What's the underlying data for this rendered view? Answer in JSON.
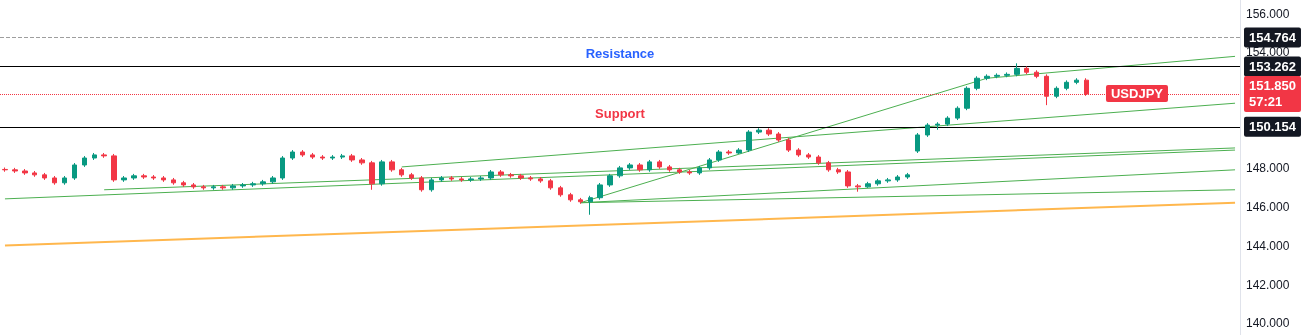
{
  "chart_data": {
    "type": "candlestick",
    "categories": [
      null,
      null,
      null,
      null,
      null,
      null,
      null,
      null,
      null,
      null,
      null,
      null,
      null,
      null,
      null,
      null,
      null,
      null,
      null,
      null,
      null,
      null,
      null,
      null,
      null,
      null,
      null,
      null,
      null,
      null,
      null,
      null,
      null,
      null,
      null,
      null,
      null,
      null,
      null,
      null,
      null,
      null,
      null,
      null,
      null,
      null,
      null,
      null,
      null,
      null,
      null,
      null,
      null,
      null,
      null,
      null,
      null,
      null,
      null,
      null,
      null,
      null,
      null,
      null,
      null,
      null,
      null,
      null,
      null,
      null,
      null,
      null,
      null,
      null,
      null,
      null,
      null,
      null,
      null,
      null,
      null,
      null,
      null,
      null,
      null,
      null,
      null,
      null,
      null,
      null,
      null,
      null,
      null,
      null,
      null,
      null,
      null,
      null,
      null,
      null,
      null,
      null,
      null,
      null,
      null,
      null,
      null,
      null,
      null,
      null,
      null,
      null,
      null,
      null,
      null,
      null,
      null,
      null,
      null,
      null,
      null,
      null,
      null,
      null,
      null
    ],
    "ohlc": [
      [
        147.95,
        148.05,
        147.83,
        147.93
      ],
      [
        147.93,
        148.03,
        147.77,
        147.87
      ],
      [
        147.87,
        147.97,
        147.67,
        147.77
      ],
      [
        147.77,
        147.87,
        147.57,
        147.67
      ],
      [
        147.67,
        147.77,
        147.41,
        147.51
      ],
      [
        147.51,
        147.61,
        147.16,
        147.26
      ],
      [
        147.26,
        147.61,
        147.16,
        147.51
      ],
      [
        147.51,
        148.28,
        147.41,
        148.18
      ],
      [
        148.18,
        148.64,
        148.08,
        148.54
      ],
      [
        148.54,
        148.8,
        148.44,
        148.7
      ],
      [
        148.7,
        148.8,
        148.55,
        148.65
      ],
      [
        148.65,
        148.75,
        147.31,
        147.41
      ],
      [
        147.41,
        147.61,
        147.31,
        147.51
      ],
      [
        147.51,
        147.72,
        147.41,
        147.62
      ],
      [
        147.62,
        147.72,
        147.46,
        147.56
      ],
      [
        147.56,
        147.66,
        147.41,
        147.51
      ],
      [
        147.51,
        147.61,
        147.31,
        147.41
      ],
      [
        147.41,
        147.51,
        147.16,
        147.26
      ],
      [
        147.26,
        147.36,
        147.05,
        147.15
      ],
      [
        147.15,
        147.25,
        146.95,
        147.05
      ],
      [
        147.05,
        147.15,
        146.9,
        147.0
      ],
      [
        147.0,
        147.15,
        146.9,
        147.05
      ],
      [
        147.05,
        147.15,
        146.9,
        147.0
      ],
      [
        147.0,
        147.2,
        146.9,
        147.1
      ],
      [
        147.1,
        147.25,
        147.0,
        147.15
      ],
      [
        147.15,
        147.31,
        147.05,
        147.21
      ],
      [
        147.21,
        147.41,
        147.11,
        147.31
      ],
      [
        147.31,
        147.61,
        147.21,
        147.51
      ],
      [
        147.51,
        148.64,
        147.41,
        148.54
      ],
      [
        148.54,
        148.95,
        148.44,
        148.85
      ],
      [
        148.85,
        148.95,
        148.6,
        148.7
      ],
      [
        148.7,
        148.8,
        148.49,
        148.59
      ],
      [
        148.59,
        148.69,
        148.44,
        148.54
      ],
      [
        148.54,
        148.69,
        148.44,
        148.59
      ],
      [
        148.59,
        148.75,
        148.49,
        148.65
      ],
      [
        148.65,
        148.75,
        148.34,
        148.44
      ],
      [
        148.44,
        148.54,
        148.19,
        148.29
      ],
      [
        148.29,
        148.39,
        146.9,
        147.21
      ],
      [
        147.21,
        148.44,
        147.11,
        148.34
      ],
      [
        148.34,
        148.44,
        147.83,
        147.93
      ],
      [
        147.93,
        148.03,
        147.57,
        147.67
      ],
      [
        147.67,
        147.77,
        147.41,
        147.51
      ],
      [
        147.51,
        147.61,
        146.8,
        146.9
      ],
      [
        146.9,
        147.51,
        146.8,
        147.41
      ],
      [
        147.41,
        147.61,
        147.31,
        147.51
      ],
      [
        147.51,
        147.61,
        147.36,
        147.46
      ],
      [
        147.46,
        147.56,
        147.31,
        147.41
      ],
      [
        147.41,
        147.56,
        147.31,
        147.46
      ],
      [
        147.46,
        147.61,
        147.36,
        147.51
      ],
      [
        147.51,
        147.92,
        147.41,
        147.82
      ],
      [
        147.82,
        147.92,
        147.57,
        147.67
      ],
      [
        147.67,
        147.77,
        147.52,
        147.62
      ],
      [
        147.62,
        147.72,
        147.41,
        147.51
      ],
      [
        147.51,
        147.61,
        147.36,
        147.46
      ],
      [
        147.46,
        147.56,
        147.26,
        147.36
      ],
      [
        147.36,
        147.46,
        146.9,
        147.0
      ],
      [
        147.0,
        147.1,
        146.54,
        146.64
      ],
      [
        146.64,
        146.74,
        146.28,
        146.38
      ],
      [
        146.38,
        146.48,
        146.18,
        146.28
      ],
      [
        146.28,
        146.59,
        145.61,
        146.49
      ],
      [
        146.49,
        147.25,
        146.39,
        147.15
      ],
      [
        147.15,
        147.72,
        147.05,
        147.62
      ],
      [
        147.62,
        148.13,
        147.52,
        148.03
      ],
      [
        148.03,
        148.28,
        147.93,
        148.18
      ],
      [
        148.18,
        148.28,
        147.83,
        147.93
      ],
      [
        147.93,
        148.44,
        147.83,
        148.34
      ],
      [
        148.34,
        148.44,
        147.98,
        148.08
      ],
      [
        148.08,
        148.18,
        147.83,
        147.93
      ],
      [
        147.93,
        148.03,
        147.72,
        147.82
      ],
      [
        147.82,
        147.92,
        147.67,
        147.77
      ],
      [
        147.77,
        148.13,
        147.67,
        148.03
      ],
      [
        148.03,
        148.54,
        147.93,
        148.44
      ],
      [
        148.44,
        148.95,
        148.34,
        148.85
      ],
      [
        148.85,
        148.95,
        148.7,
        148.8
      ],
      [
        148.8,
        149.05,
        148.75,
        148.95
      ],
      [
        148.95,
        149.98,
        148.85,
        149.88
      ],
      [
        149.88,
        150.08,
        149.78,
        149.98
      ],
      [
        149.98,
        150.08,
        149.68,
        149.78
      ],
      [
        149.78,
        149.88,
        149.37,
        149.47
      ],
      [
        149.47,
        149.57,
        148.85,
        148.95
      ],
      [
        148.95,
        149.05,
        148.6,
        148.7
      ],
      [
        148.7,
        148.8,
        148.49,
        148.59
      ],
      [
        148.59,
        148.69,
        148.19,
        148.29
      ],
      [
        148.29,
        148.39,
        147.83,
        147.93
      ],
      [
        147.93,
        148.03,
        147.72,
        147.82
      ],
      [
        147.82,
        147.92,
        147.0,
        147.1
      ],
      [
        147.1,
        147.2,
        146.8,
        147.05
      ],
      [
        147.05,
        147.31,
        147.0,
        147.21
      ],
      [
        147.21,
        147.46,
        147.11,
        147.36
      ],
      [
        147.36,
        147.51,
        147.26,
        147.41
      ],
      [
        147.41,
        147.66,
        147.31,
        147.56
      ],
      [
        147.56,
        147.77,
        147.46,
        147.67
      ],
      [
        148.9,
        149.83,
        148.8,
        149.73
      ],
      [
        149.73,
        150.34,
        149.63,
        150.24
      ],
      [
        150.24,
        150.39,
        150.0,
        150.29
      ],
      [
        150.29,
        150.7,
        150.19,
        150.6
      ],
      [
        150.6,
        151.21,
        150.5,
        151.11
      ],
      [
        151.11,
        152.24,
        151.01,
        152.14
      ],
      [
        152.14,
        152.76,
        152.04,
        152.66
      ],
      [
        152.66,
        152.86,
        152.56,
        152.76
      ],
      [
        152.76,
        152.91,
        152.66,
        152.81
      ],
      [
        152.81,
        152.96,
        152.71,
        152.86
      ],
      [
        152.86,
        153.43,
        152.76,
        153.17
      ],
      [
        153.17,
        153.27,
        152.87,
        152.97
      ],
      [
        152.97,
        153.07,
        152.66,
        152.76
      ],
      [
        152.76,
        152.86,
        151.27,
        151.73
      ],
      [
        151.73,
        152.24,
        151.63,
        152.14
      ],
      [
        152.14,
        152.55,
        152.04,
        152.45
      ],
      [
        152.45,
        152.66,
        152.35,
        152.56
      ],
      [
        152.56,
        152.66,
        151.75,
        151.85
      ],
      null,
      null,
      null,
      null,
      null,
      null,
      null,
      null,
      null,
      null,
      null,
      null,
      null,
      null,
      null
    ],
    "series": [
      {
        "type": "line",
        "color": "#4caf50",
        "values": [
          146.43,
          null,
          null,
          null,
          null,
          null,
          null,
          null,
          null,
          null,
          null,
          null,
          null,
          null,
          null,
          null,
          null,
          null,
          null,
          null,
          null,
          null,
          null,
          null,
          null,
          null,
          null,
          null,
          null,
          null,
          null,
          null,
          null,
          null,
          null,
          null,
          null,
          null,
          null,
          null,
          null,
          null,
          null,
          null,
          null,
          null,
          null,
          null,
          null,
          null,
          null,
          null,
          null,
          null,
          null,
          null,
          null,
          null,
          null,
          null,
          null,
          null,
          null,
          null,
          null,
          null,
          null,
          null,
          null,
          null,
          null,
          null,
          null,
          null,
          null,
          null,
          null,
          null,
          null,
          null,
          null,
          null,
          null,
          null,
          null,
          null,
          null,
          null,
          null,
          null,
          null,
          null,
          null,
          null,
          null,
          null,
          null,
          null,
          null,
          null,
          null,
          null,
          null,
          null,
          null,
          null,
          null,
          null,
          null,
          null,
          null,
          null,
          null,
          null,
          null,
          null,
          null,
          null,
          null,
          null,
          null,
          null,
          null,
          null,
          148.95
        ]
      },
      {
        "type": "line",
        "color": "#4caf50",
        "values": [
          null,
          null,
          null,
          null,
          null,
          null,
          null,
          null,
          null,
          null,
          146.9,
          null,
          null,
          null,
          null,
          null,
          null,
          null,
          null,
          null,
          null,
          null,
          null,
          null,
          null,
          null,
          null,
          null,
          null,
          null,
          null,
          null,
          null,
          null,
          null,
          null,
          null,
          null,
          null,
          null,
          null,
          null,
          null,
          null,
          null,
          null,
          null,
          null,
          null,
          null,
          null,
          null,
          null,
          null,
          null,
          null,
          null,
          null,
          null,
          null,
          null,
          null,
          null,
          null,
          null,
          null,
          null,
          null,
          null,
          null,
          null,
          null,
          null,
          null,
          null,
          null,
          null,
          null,
          null,
          null,
          null,
          null,
          null,
          null,
          null,
          null,
          null,
          null,
          null,
          null,
          null,
          null,
          null,
          null,
          null,
          null,
          null,
          null,
          null,
          null,
          null,
          null,
          null,
          null,
          null,
          null,
          null,
          null,
          null,
          null,
          null,
          null,
          null,
          null,
          null,
          null,
          null,
          null,
          null,
          null,
          null,
          null,
          null,
          null,
          149.06
        ]
      },
      {
        "type": "line",
        "color": "#4caf50",
        "values": [
          null,
          null,
          null,
          null,
          null,
          null,
          null,
          null,
          null,
          null,
          null,
          null,
          null,
          null,
          null,
          null,
          null,
          null,
          null,
          null,
          null,
          null,
          null,
          null,
          null,
          null,
          null,
          null,
          null,
          null,
          null,
          null,
          null,
          null,
          null,
          null,
          null,
          null,
          null,
          null,
          148.08,
          null,
          null,
          null,
          null,
          null,
          null,
          null,
          null,
          null,
          null,
          null,
          null,
          null,
          null,
          null,
          null,
          null,
          null,
          null,
          null,
          null,
          null,
          null,
          null,
          null,
          null,
          null,
          null,
          null,
          null,
          null,
          null,
          null,
          null,
          null,
          null,
          null,
          null,
          null,
          null,
          null,
          null,
          null,
          null,
          null,
          null,
          null,
          null,
          null,
          null,
          null,
          null,
          null,
          null,
          null,
          null,
          null,
          null,
          null,
          null,
          null,
          null,
          null,
          null,
          null,
          null,
          null,
          null,
          null,
          null,
          null,
          null,
          null,
          null,
          null,
          null,
          null,
          null,
          null,
          null,
          null,
          null,
          null,
          151.37
        ]
      },
      {
        "type": "line",
        "color": "#4caf50",
        "values": [
          null,
          null,
          null,
          null,
          null,
          null,
          null,
          null,
          null,
          null,
          null,
          null,
          null,
          null,
          null,
          null,
          null,
          null,
          null,
          null,
          null,
          null,
          null,
          null,
          null,
          null,
          null,
          null,
          null,
          null,
          null,
          null,
          null,
          null,
          null,
          null,
          null,
          null,
          null,
          null,
          null,
          null,
          null,
          null,
          null,
          null,
          null,
          null,
          null,
          null,
          null,
          null,
          null,
          null,
          null,
          null,
          null,
          null,
          146.23,
          null,
          null,
          null,
          null,
          null,
          null,
          null,
          null,
          null,
          null,
          null,
          null,
          null,
          null,
          null,
          null,
          null,
          null,
          null,
          null,
          null,
          null,
          null,
          null,
          null,
          null,
          null,
          null,
          null,
          null,
          null,
          null,
          null,
          null,
          null,
          null,
          null,
          null,
          null,
          null,
          null,
          null,
          null,
          null,
          null,
          null,
          null,
          null,
          null,
          null,
          null,
          null,
          null,
          null,
          null,
          null,
          null,
          null,
          null,
          null,
          null,
          null,
          null,
          null,
          null,
          147.93
        ]
      },
      {
        "type": "line",
        "color": "#4caf50",
        "values": [
          null,
          null,
          null,
          null,
          null,
          null,
          null,
          null,
          null,
          null,
          null,
          null,
          null,
          null,
          null,
          null,
          null,
          null,
          null,
          null,
          null,
          null,
          null,
          null,
          null,
          null,
          null,
          null,
          null,
          null,
          null,
          null,
          null,
          null,
          null,
          null,
          null,
          null,
          null,
          null,
          null,
          null,
          null,
          null,
          null,
          null,
          null,
          null,
          null,
          null,
          null,
          null,
          null,
          null,
          null,
          null,
          null,
          null,
          146.23,
          null,
          null,
          null,
          null,
          null,
          null,
          null,
          null,
          null,
          null,
          null,
          null,
          null,
          null,
          null,
          null,
          null,
          null,
          null,
          null,
          null,
          null,
          null,
          null,
          null,
          null,
          null,
          null,
          null,
          null,
          null,
          null,
          null,
          null,
          null,
          null,
          null,
          null,
          null,
          null,
          null,
          null,
          null,
          null,
          null,
          null,
          null,
          null,
          null,
          null,
          null,
          null,
          null,
          null,
          null,
          null,
          null,
          null,
          null,
          null,
          null,
          null,
          null,
          null,
          null,
          146.9
        ]
      },
      {
        "type": "line",
        "color": "#4caf50",
        "values": [
          null,
          null,
          null,
          null,
          null,
          null,
          null,
          null,
          null,
          null,
          null,
          null,
          null,
          null,
          null,
          null,
          null,
          null,
          null,
          null,
          null,
          null,
          null,
          null,
          null,
          null,
          null,
          null,
          null,
          null,
          null,
          null,
          null,
          null,
          null,
          null,
          null,
          null,
          null,
          null,
          null,
          null,
          null,
          null,
          null,
          null,
          null,
          null,
          null,
          null,
          null,
          null,
          null,
          null,
          null,
          null,
          null,
          null,
          146.23,
          null,
          null,
          null,
          null,
          null,
          null,
          null,
          null,
          null,
          null,
          null,
          null,
          null,
          null,
          null,
          null,
          null,
          null,
          null,
          null,
          null,
          null,
          null,
          null,
          null,
          null,
          null,
          null,
          null,
          null,
          null,
          null,
          null,
          null,
          null,
          null,
          null,
          null,
          null,
          null,
          152.66,
          null,
          null,
          null,
          null,
          null,
          null,
          null,
          null,
          null,
          null,
          null,
          null,
          null,
          null,
          null,
          null,
          null,
          null,
          null,
          null,
          null,
          null,
          null,
          null,
          153.79
        ]
      },
      {
        "type": "line",
        "color": "#ffb74d",
        "values": [
          144.02,
          null,
          null,
          null,
          null,
          null,
          null,
          null,
          null,
          null,
          null,
          null,
          null,
          null,
          null,
          null,
          null,
          null,
          null,
          null,
          null,
          null,
          null,
          null,
          null,
          null,
          null,
          null,
          null,
          null,
          null,
          null,
          null,
          null,
          null,
          null,
          null,
          null,
          null,
          null,
          null,
          null,
          null,
          null,
          null,
          null,
          null,
          null,
          null,
          null,
          null,
          null,
          null,
          null,
          null,
          null,
          null,
          null,
          null,
          null,
          null,
          null,
          null,
          null,
          null,
          null,
          null,
          null,
          null,
          null,
          null,
          null,
          null,
          null,
          null,
          null,
          null,
          null,
          null,
          null,
          null,
          null,
          null,
          null,
          null,
          null,
          null,
          null,
          null,
          null,
          null,
          null,
          null,
          null,
          null,
          null,
          null,
          null,
          null,
          null,
          null,
          null,
          null,
          null,
          null,
          null,
          null,
          null,
          null,
          null,
          null,
          null,
          null,
          null,
          null,
          null,
          null,
          null,
          null,
          null,
          null,
          null,
          null,
          null,
          146.23
        ]
      }
    ],
    "ylim": [
      139.4,
      156.7
    ],
    "yticks": [
      {
        "value": 140,
        "label": "140.000"
      },
      {
        "value": 142,
        "label": "142.000"
      },
      {
        "value": 144,
        "label": "144.000"
      },
      {
        "value": 146,
        "label": "146.000"
      },
      {
        "value": 148,
        "label": "148.000"
      },
      {
        "value": 154,
        "label": "154.000"
      },
      {
        "value": 156,
        "label": "156.000"
      }
    ],
    "tick_labels": "y",
    "ref_lines": [
      {
        "axis": "y",
        "value": 154.764,
        "label": "154.764",
        "color": "#9e9e9e",
        "line_style": "dashed"
      },
      {
        "axis": "y",
        "value": 153.262,
        "label": "153.262",
        "color": "#000000",
        "line_style": "solid"
      },
      {
        "axis": "y",
        "value": 151.85,
        "label": "151.850\n57:21",
        "color": "#f23645",
        "line_style": "dotted"
      },
      {
        "axis": "y",
        "value": 150.154,
        "label": "150.154",
        "color": "#000000",
        "line_style": "solid"
      }
    ],
    "annotations": [
      "Resistance",
      "Support",
      {
        "text": "USDJPY",
        "y": 151.85
      }
    ]
  }
}
